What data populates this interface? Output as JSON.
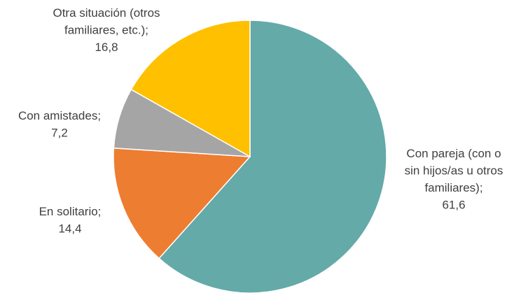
{
  "chart_data": {
    "type": "pie",
    "start_angle_deg": 0,
    "direction": "clockwise",
    "slices": [
      {
        "label_lines": [
          "Con pareja (con o",
          "sin hijos/as u otros",
          "familiares);",
          "61,6"
        ],
        "value": 61.6,
        "color": "#63aaa9"
      },
      {
        "label_lines": [
          "En solitario;",
          "14,4"
        ],
        "value": 14.4,
        "color": "#ed7d31"
      },
      {
        "label_lines": [
          "Con amistades;",
          "7,2"
        ],
        "value": 7.2,
        "color": "#a5a5a5"
      },
      {
        "label_lines": [
          "Otra situación (otros",
          "familiares, etc.);",
          "16,8"
        ],
        "value": 16.8,
        "color": "#ffc000"
      }
    ]
  }
}
